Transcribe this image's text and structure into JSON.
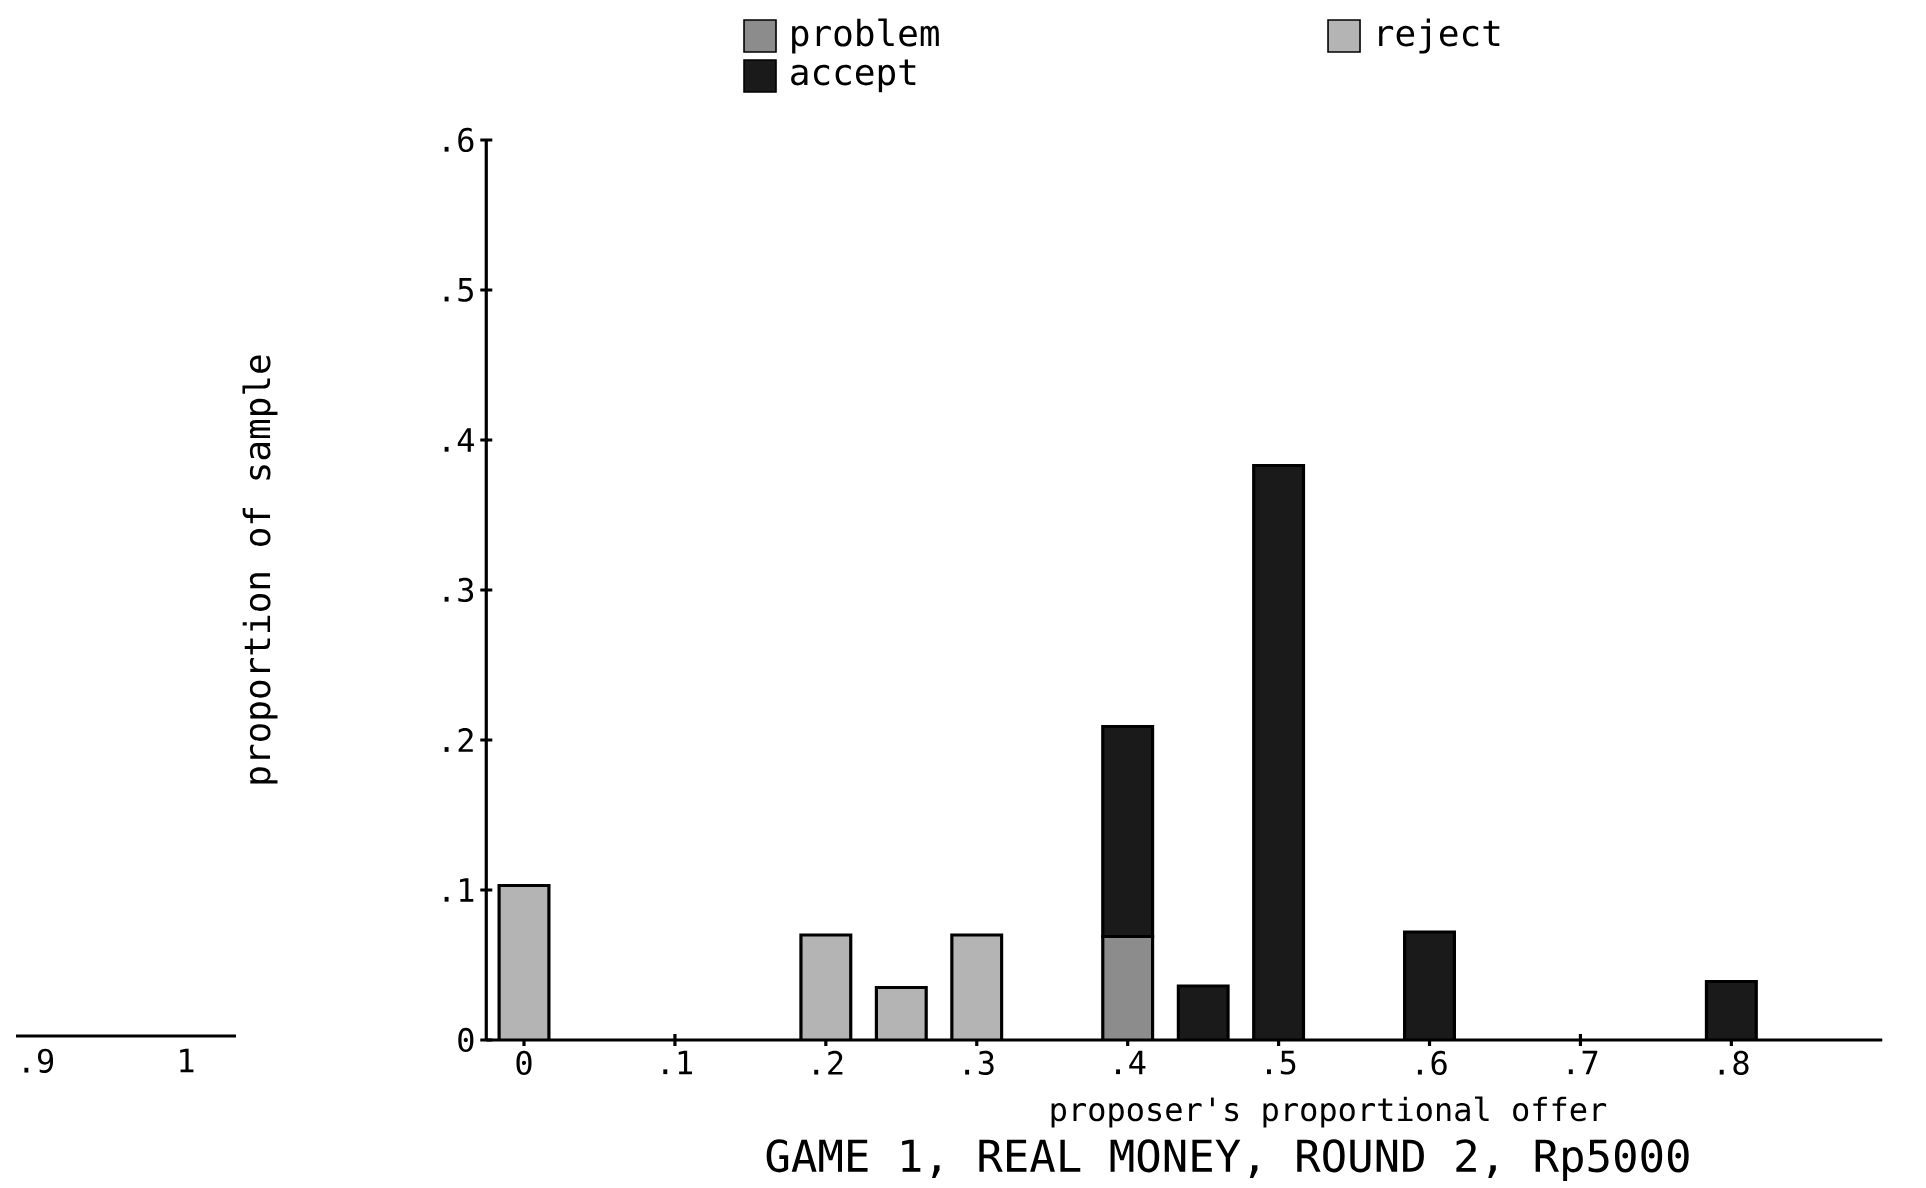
{
  "chart_data": [
    {
      "type": "bar",
      "title": "GAME 1, REAL MONEY, ROUND 2, Rp5000",
      "xlabel": "proposer's proportional offer",
      "ylabel": "proportion of sample",
      "stacked": true,
      "legend": "top",
      "x": [
        0,
        0.2,
        0.25,
        0.3,
        0.4,
        0.45,
        0.5,
        0.6,
        0.8
      ],
      "series": [
        {
          "name": "reject",
          "color": "#b4b4b4",
          "values": [
            0.103,
            0.07,
            0.035,
            0.07,
            null,
            null,
            null,
            null,
            null
          ]
        },
        {
          "name": "problem",
          "color": "#8c8c8c",
          "values": [
            null,
            null,
            null,
            null,
            0.069,
            null,
            null,
            null,
            null
          ]
        },
        {
          "name": "accept",
          "color": "#1a1a1a",
          "values": [
            null,
            null,
            null,
            null,
            0.14,
            0.036,
            0.383,
            0.072,
            0.039
          ]
        }
      ],
      "xlim": [
        -0.025,
        0.9
      ],
      "xticks": [
        0,
        {
          "value": 0.1,
          "label": ".1"
        },
        {
          "value": 0.2,
          "label": ".2"
        },
        {
          "value": 0.3,
          "label": ".3"
        },
        {
          "value": 0.4,
          "label": ".4"
        },
        {
          "value": 0.5,
          "label": ".5"
        },
        {
          "value": 0.6,
          "label": ".6"
        },
        {
          "value": 0.7,
          "label": ".7"
        },
        {
          "value": 0.8,
          "label": ".8"
        }
      ],
      "ylim": [
        0,
        0.6
      ],
      "yticks": [
        0,
        {
          "value": 0.1,
          "label": ".1"
        },
        {
          "value": 0.2,
          "label": ".2"
        },
        {
          "value": 0.3,
          "label": ".3"
        },
        {
          "value": 0.4,
          "label": ".4"
        },
        {
          "value": 0.5,
          "label": ".5"
        },
        {
          "value": 0.6,
          "label": ".6"
        }
      ]
    },
    {
      "type": "other",
      "annotations": [
        ".9",
        "1"
      ]
    }
  ]
}
